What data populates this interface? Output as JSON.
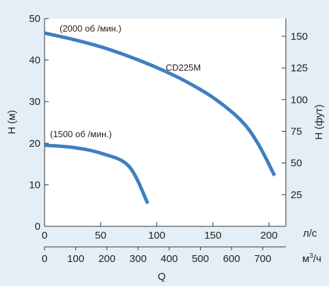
{
  "chart_data": {
    "type": "line",
    "left_axis": {
      "label": "H (м)",
      "range": [
        0,
        50
      ],
      "ticks": [
        0,
        10,
        20,
        30,
        40,
        50
      ]
    },
    "right_axis": {
      "label": "H (фут)",
      "range_m": [
        0,
        50
      ],
      "ticks": [
        {
          "label": "25",
          "m": 7.62
        },
        {
          "label": "50",
          "m": 15.24
        },
        {
          "label": "75",
          "m": 22.86
        },
        {
          "label": "100",
          "m": 30.48
        },
        {
          "label": "125",
          "m": 38.1
        },
        {
          "label": "150",
          "m": 45.72
        }
      ]
    },
    "x_axis_ls": {
      "unit": "л/с",
      "range": [
        0,
        215
      ],
      "ticks": [
        0,
        50,
        100,
        150,
        200
      ]
    },
    "x_axis_m3h": {
      "unit_base": "м",
      "unit_sup": "3",
      "unit_tail": "/ч",
      "ticks": [
        0,
        100,
        200,
        300,
        400,
        500,
        600,
        700
      ]
    },
    "x_title": "Q",
    "series": [
      {
        "name": "(2000 об /мин.)",
        "color": "#3d7fc1",
        "points": [
          [
            0,
            46.5
          ],
          [
            25,
            45.0
          ],
          [
            50,
            43.2
          ],
          [
            75,
            40.9
          ],
          [
            100,
            38.2
          ],
          [
            125,
            35.0
          ],
          [
            150,
            31.0
          ],
          [
            175,
            25.5
          ],
          [
            190,
            20.0
          ],
          [
            205,
            12.2
          ]
        ]
      },
      {
        "name": "(1500 об /мин.)",
        "color": "#3d7fc1",
        "points": [
          [
            0,
            19.5
          ],
          [
            25,
            19.0
          ],
          [
            50,
            17.6
          ],
          [
            75,
            14.5
          ],
          [
            92,
            5.5
          ]
        ]
      }
    ],
    "annotations": [
      {
        "text": "CD225M",
        "x": 108,
        "y": 37.5
      }
    ]
  }
}
